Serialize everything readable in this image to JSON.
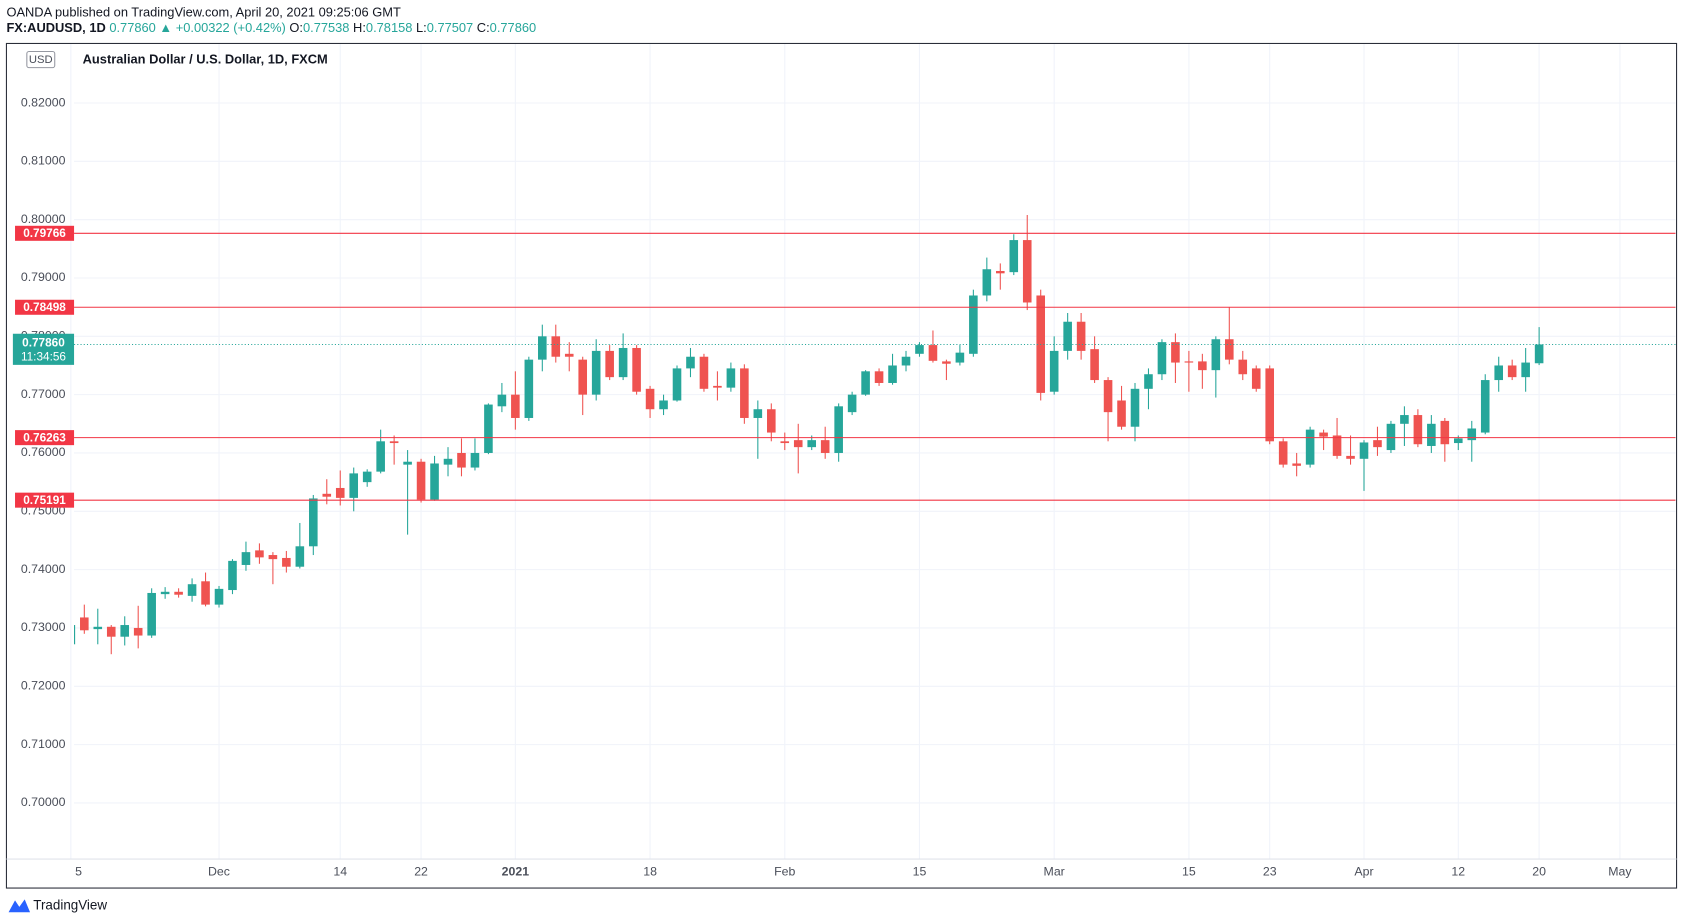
{
  "header": {
    "publisher": "OANDA published on TradingView.com, April 20, 2021 09:25:06 GMT",
    "symbol": "FX:AUDUSD, 1D",
    "price": "0.77860",
    "change": "▲ +0.00322 (+0.42%)",
    "quote": [
      {
        "key": "O:",
        "value": "0.77538"
      },
      {
        "key": "H:",
        "value": "0.78158"
      },
      {
        "key": "L:",
        "value": "0.77507"
      },
      {
        "key": "C:",
        "value": "0.77860"
      }
    ]
  },
  "footer": {
    "brand": "TradingView"
  },
  "chart_data": {
    "type": "candlestick",
    "title": "Australian Dollar / U.S. Dollar, 1D, FXCM",
    "currency": "USD",
    "categories": [
      "5",
      null,
      null,
      null,
      null,
      null,
      null,
      null,
      null,
      null,
      null,
      "Dec",
      null,
      null,
      null,
      null,
      null,
      null,
      null,
      null,
      "14",
      null,
      null,
      null,
      null,
      null,
      "22",
      null,
      null,
      null,
      null,
      null,
      null,
      "2021",
      null,
      null,
      null,
      null,
      null,
      null,
      null,
      null,
      null,
      "18",
      null,
      null,
      null,
      null,
      null,
      null,
      null,
      null,
      null,
      "Feb",
      null,
      null,
      null,
      null,
      null,
      null,
      null,
      null,
      null,
      "15",
      null,
      null,
      null,
      null,
      null,
      null,
      null,
      null,
      null,
      "Mar",
      null,
      null,
      null,
      null,
      null,
      null,
      null,
      null,
      null,
      "15",
      null,
      null,
      null,
      null,
      null,
      "23",
      null,
      null,
      null,
      null,
      null,
      null,
      "Apr",
      null,
      null,
      null,
      null,
      null,
      null,
      "12",
      null,
      null,
      null,
      null,
      null,
      "20",
      null,
      null,
      null,
      null,
      null,
      "May"
    ],
    "open": [
      0.7272,
      0.7318,
      0.7298,
      0.7302,
      0.7285,
      0.73,
      0.7287,
      0.7358,
      0.7362,
      0.7355,
      0.738,
      0.734,
      0.7365,
      0.7408,
      0.7433,
      0.7425,
      0.742,
      0.7405,
      0.744,
      0.753,
      0.754,
      0.7523,
      0.755,
      0.7568,
      0.762,
      0.758,
      0.7585,
      0.752,
      0.758,
      0.76,
      0.7575,
      0.76,
      0.768,
      0.77,
      0.766,
      0.776,
      0.78,
      0.777,
      0.776,
      0.77,
      0.7775,
      0.773,
      0.778,
      0.771,
      0.7675,
      0.769,
      0.7745,
      0.7765,
      0.7715,
      0.7712,
      0.7745,
      0.766,
      0.7675,
      0.762,
      0.7622,
      0.761,
      0.7622,
      0.76,
      0.767,
      0.77,
      0.774,
      0.772,
      0.775,
      0.777,
      0.7785,
      0.7757,
      0.7755,
      0.777,
      0.787,
      0.7912,
      0.791,
      0.7965,
      0.787,
      0.7705,
      0.7775,
      0.7825,
      0.7778,
      0.7725,
      0.769,
      0.7645,
      0.771,
      0.7735,
      0.779,
      0.7757,
      0.7757,
      0.7742,
      0.7795,
      0.776,
      0.7745,
      0.7745,
      0.762,
      0.7582,
      0.758,
      0.7635,
      0.763,
      0.7595,
      0.759,
      0.7622,
      0.7605,
      0.765,
      0.7665,
      0.7612,
      0.7655,
      0.7617,
      0.7622,
      0.7635,
      0.7725,
      0.775,
      0.773,
      0.77538,
      null,
      null,
      null,
      null,
      null,
      null
    ],
    "high": [
      0.7315,
      0.734,
      0.7333,
      0.7305,
      0.732,
      0.7338,
      0.7368,
      0.737,
      0.7368,
      0.7385,
      0.7395,
      0.7372,
      0.7418,
      0.7448,
      0.7445,
      0.743,
      0.7432,
      0.748,
      0.7528,
      0.7555,
      0.757,
      0.7575,
      0.7572,
      0.764,
      0.763,
      0.7605,
      0.759,
      0.7595,
      0.761,
      0.7625,
      0.7625,
      0.7685,
      0.772,
      0.774,
      0.7765,
      0.782,
      0.782,
      0.779,
      0.7765,
      0.7795,
      0.7785,
      0.7805,
      0.7785,
      0.7715,
      0.77,
      0.775,
      0.778,
      0.777,
      0.774,
      0.7755,
      0.7752,
      0.769,
      0.7685,
      0.7635,
      0.765,
      0.763,
      0.7645,
      0.7685,
      0.7705,
      0.7742,
      0.7745,
      0.777,
      0.7775,
      0.779,
      0.781,
      0.776,
      0.7785,
      0.788,
      0.7935,
      0.7925,
      0.7975,
      0.8008,
      0.788,
      0.78,
      0.784,
      0.784,
      0.78,
      0.773,
      0.7715,
      0.772,
      0.7745,
      0.7795,
      0.7805,
      0.7775,
      0.777,
      0.78,
      0.785,
      0.7775,
      0.775,
      0.775,
      0.7625,
      0.76,
      0.7645,
      0.764,
      0.766,
      0.763,
      0.7622,
      0.7645,
      0.7655,
      0.768,
      0.7675,
      0.7665,
      0.766,
      0.763,
      0.7655,
      0.7735,
      0.7765,
      0.776,
      0.778,
      0.78158,
      null,
      null,
      null,
      null,
      null,
      null
    ],
    "low": [
      0.7265,
      0.729,
      0.7272,
      0.7255,
      0.727,
      0.7265,
      0.7283,
      0.735,
      0.7352,
      0.7345,
      0.7337,
      0.7335,
      0.7358,
      0.7398,
      0.741,
      0.7375,
      0.7395,
      0.7402,
      0.7425,
      0.7512,
      0.751,
      0.75,
      0.7542,
      0.7565,
      0.758,
      0.746,
      0.7515,
      0.7518,
      0.756,
      0.756,
      0.757,
      0.7598,
      0.767,
      0.764,
      0.7655,
      0.774,
      0.7755,
      0.774,
      0.7665,
      0.769,
      0.7725,
      0.7725,
      0.77,
      0.766,
      0.7665,
      0.7688,
      0.773,
      0.7705,
      0.769,
      0.7705,
      0.765,
      0.759,
      0.762,
      0.7605,
      0.7565,
      0.7605,
      0.759,
      0.7585,
      0.7665,
      0.7698,
      0.7715,
      0.7717,
      0.774,
      0.7765,
      0.7755,
      0.7725,
      0.775,
      0.7765,
      0.786,
      0.788,
      0.7905,
      0.7845,
      0.769,
      0.77,
      0.776,
      0.776,
      0.772,
      0.762,
      0.764,
      0.762,
      0.7675,
      0.7725,
      0.772,
      0.7705,
      0.771,
      0.7695,
      0.7752,
      0.7725,
      0.7705,
      0.7615,
      0.7575,
      0.756,
      0.7575,
      0.7605,
      0.759,
      0.758,
      0.7535,
      0.7595,
      0.76,
      0.7612,
      0.761,
      0.76,
      0.7585,
      0.7605,
      0.7585,
      0.7632,
      0.7705,
      0.7725,
      0.7705,
      0.77507,
      null,
      null,
      null,
      null,
      null,
      null
    ],
    "close": [
      0.7305,
      0.7296,
      0.7302,
      0.7285,
      0.7305,
      0.7287,
      0.736,
      0.7362,
      0.7357,
      0.7375,
      0.734,
      0.7367,
      0.7415,
      0.743,
      0.7421,
      0.7418,
      0.7405,
      0.744,
      0.7522,
      0.7525,
      0.7523,
      0.7565,
      0.7568,
      0.762,
      0.7617,
      0.7585,
      0.752,
      0.7582,
      0.759,
      0.7575,
      0.76,
      0.7683,
      0.77,
      0.766,
      0.776,
      0.78,
      0.7765,
      0.7765,
      0.77,
      0.7775,
      0.773,
      0.778,
      0.7705,
      0.7675,
      0.769,
      0.7745,
      0.7765,
      0.771,
      0.7712,
      0.7745,
      0.766,
      0.7675,
      0.7635,
      0.7617,
      0.761,
      0.7622,
      0.76,
      0.768,
      0.77,
      0.774,
      0.772,
      0.775,
      0.7765,
      0.7785,
      0.7758,
      0.7753,
      0.7772,
      0.787,
      0.7915,
      0.7908,
      0.7965,
      0.7858,
      0.7703,
      0.7775,
      0.7825,
      0.7775,
      0.7725,
      0.767,
      0.7645,
      0.771,
      0.7735,
      0.779,
      0.7755,
      0.7755,
      0.7742,
      0.7795,
      0.776,
      0.7735,
      0.771,
      0.762,
      0.758,
      0.7578,
      0.764,
      0.7628,
      0.7595,
      0.759,
      0.7618,
      0.761,
      0.765,
      0.7665,
      0.7615,
      0.765,
      0.7615,
      0.7625,
      0.7642,
      0.7725,
      0.775,
      0.773,
      0.7755,
      0.7786,
      null,
      null,
      null,
      null,
      null,
      null
    ],
    "up_color": "#26a69a",
    "down_color": "#ef5350",
    "ylim": [
      0.6901,
      0.8303
    ],
    "yticks": [
      {
        "value": 0.7,
        "label": "0.70000"
      },
      {
        "value": 0.71,
        "label": "0.71000"
      },
      {
        "value": 0.72,
        "label": "0.72000"
      },
      {
        "value": 0.73,
        "label": "0.73000"
      },
      {
        "value": 0.74,
        "label": "0.74000"
      },
      {
        "value": 0.75,
        "label": "0.75000"
      },
      {
        "value": 0.76,
        "label": "0.76000"
      },
      {
        "value": 0.77,
        "label": "0.77000"
      },
      {
        "value": 0.78,
        "label": "0.78000"
      },
      {
        "value": 0.79,
        "label": "0.79000"
      },
      {
        "value": 0.8,
        "label": "0.80000"
      },
      {
        "value": 0.81,
        "label": "0.81000"
      },
      {
        "value": 0.82,
        "label": "0.82000"
      }
    ],
    "grid": true,
    "levels": [
      0.79766,
      0.78498,
      0.76263,
      0.75191
    ],
    "level_color": "#f23645",
    "last": {
      "value": 0.7786,
      "label": "0.77860",
      "countdown": "11:34:56"
    },
    "last_color": "#26a69a"
  }
}
